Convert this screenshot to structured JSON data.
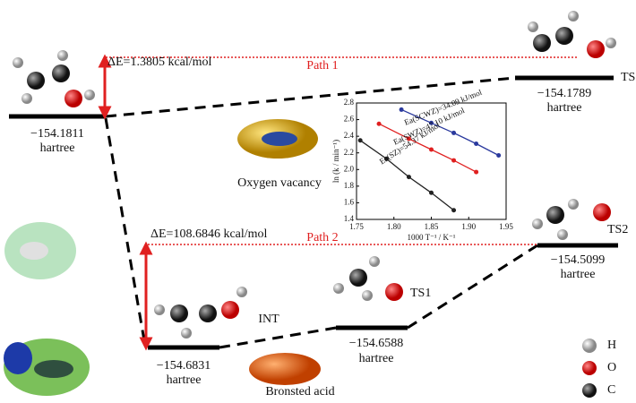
{
  "diagram": {
    "start": {
      "energy": "−154.1811",
      "unit": "hartree"
    },
    "ts": {
      "label": "TS",
      "energy": "−154.1789",
      "unit": "hartree"
    },
    "path1": {
      "label": "Path 1",
      "delta": "ΔE=1.3805 kcal/mol"
    },
    "path2": {
      "label": "Path 2",
      "delta": "ΔE=108.6846 kcal/mol"
    },
    "ts2": {
      "label": "TS2",
      "energy": "−154.5099",
      "unit": "hartree"
    },
    "ts1": {
      "label": "TS1",
      "energy": "−154.6588",
      "unit": "hartree"
    },
    "int": {
      "label": "INT",
      "energy": "−154.6831",
      "unit": "hartree"
    },
    "oxygen_vacancy": "Oxygen vacancy",
    "bronsted_acid": "Bronsted acid",
    "legend": [
      "H",
      "O",
      "C"
    ]
  },
  "chart_data": {
    "type": "line",
    "xlabel": "1000 T⁻¹ / K⁻¹",
    "ylabel": "ln (k / min⁻¹)",
    "xlim": [
      1.75,
      1.95
    ],
    "xticks": [
      {
        "value": 1.75,
        "label": "1.75"
      },
      {
        "value": 1.8,
        "label": "1.80"
      },
      {
        "value": 1.85,
        "label": "1.85"
      },
      {
        "value": 1.9,
        "label": "1.90"
      },
      {
        "value": 1.95,
        "label": "1.95"
      }
    ],
    "ylim": [
      1.4,
      2.8
    ],
    "yticks": [
      1.4,
      1.6,
      1.8,
      {
        "value": 2.0,
        "label": "2.0"
      },
      2.2,
      2.4,
      2.6,
      2.8
    ],
    "series": [
      {
        "name": "Ea(SCWZ)=34.09 kJ/mol",
        "color": "#2b3a9e",
        "x": [
          1.81,
          1.85,
          1.88,
          1.91,
          1.94
        ],
        "values": [
          2.72,
          2.56,
          2.44,
          2.31,
          2.17
        ]
      },
      {
        "name": "Ea(SWZ)=47.10 kJ/mol",
        "color": "#e02020",
        "x": [
          1.78,
          1.82,
          1.85,
          1.88,
          1.91
        ],
        "values": [
          2.55,
          2.37,
          2.24,
          2.11,
          1.97
        ]
      },
      {
        "name": "Ea(SZ)=54.37 kJ/mol",
        "color": "#222222",
        "x": [
          1.755,
          1.79,
          1.82,
          1.85,
          1.88
        ],
        "values": [
          2.35,
          2.13,
          1.91,
          1.72,
          1.51
        ]
      }
    ]
  }
}
